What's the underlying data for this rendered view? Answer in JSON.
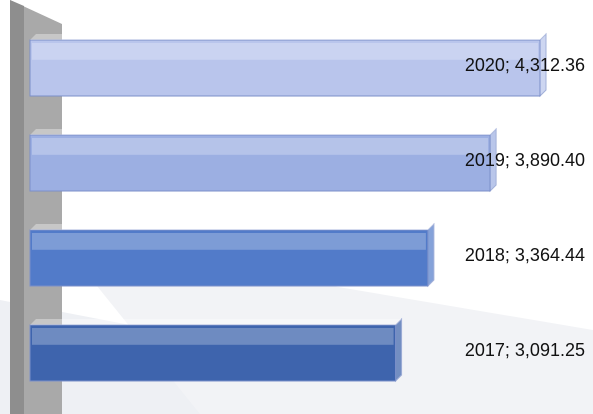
{
  "chart_data": {
    "type": "bar3d_horizontal",
    "categories": [
      "2020",
      "2019",
      "2018",
      "2017"
    ],
    "values": [
      4312.36,
      3890.4,
      3364.44,
      3091.25
    ],
    "value_labels": [
      "4,312.36",
      "3,890.40",
      "3,364.44",
      "3,091.25"
    ],
    "label_separator": "; ",
    "colors": [
      "#b9c5ec",
      "#9cafe2",
      "#527bc9",
      "#3e64ad"
    ]
  }
}
